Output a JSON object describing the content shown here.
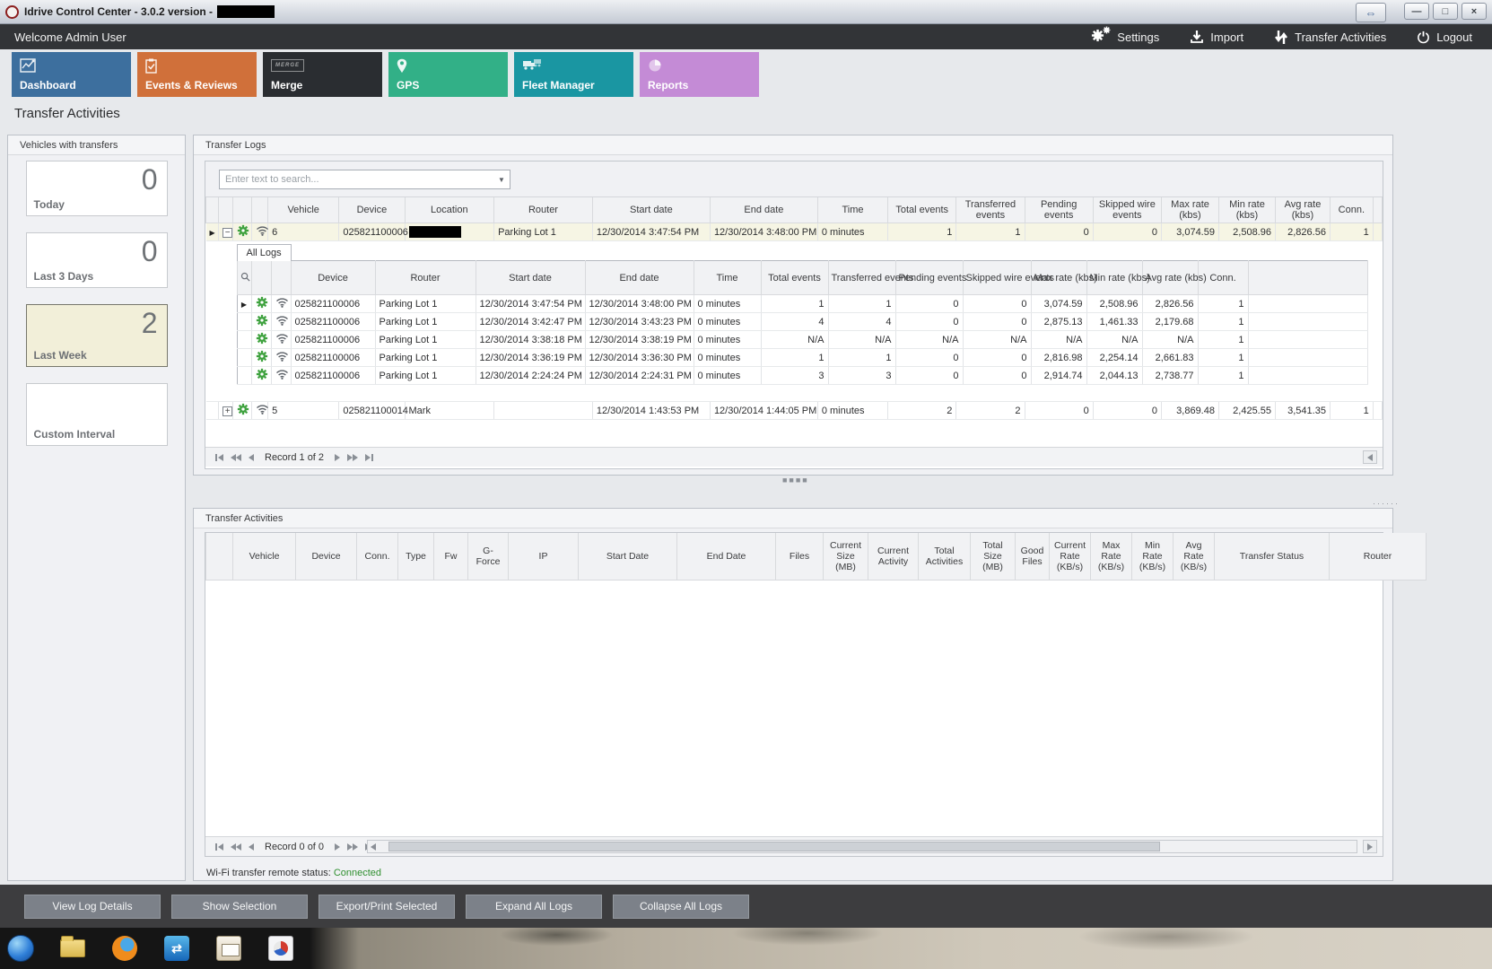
{
  "window": {
    "title": "Idrive Control Center - 3.0.2 version -",
    "title_redacted": true,
    "buttons": [
      "resize",
      "minimize",
      "maximize",
      "close"
    ]
  },
  "header": {
    "welcome": "Welcome Admin User",
    "actions": [
      {
        "label": "Settings",
        "icon": "gears-icon"
      },
      {
        "label": "Import",
        "icon": "import-icon"
      },
      {
        "label": "Transfer Activities",
        "icon": "transfer-arrows-icon"
      },
      {
        "label": "Logout",
        "icon": "power-icon"
      }
    ]
  },
  "nav": {
    "tiles": [
      {
        "label": "Dashboard",
        "color": "#3d6f9e",
        "icon": "line-chart-icon"
      },
      {
        "label": "Events & Reviews",
        "color": "#d0703a",
        "icon": "clipboard-check-icon"
      },
      {
        "label": "Merge",
        "color": "#2a2d31",
        "icon": "merge-badge-icon"
      },
      {
        "label": "GPS",
        "color": "#32b087",
        "icon": "map-pin-icon"
      },
      {
        "label": "Fleet Manager",
        "color": "#1a96a2",
        "icon": "trucks-icon"
      },
      {
        "label": "Reports",
        "color": "#c48bd6",
        "icon": "pie-chart-icon"
      }
    ]
  },
  "page_title": "Transfer Activities",
  "sidebar": {
    "title": "Vehicles with transfers",
    "cards": [
      {
        "label": "Today",
        "value": "0",
        "selected": false
      },
      {
        "label": "Last 3 Days",
        "value": "0",
        "selected": false
      },
      {
        "label": "Last Week",
        "value": "2",
        "selected": true
      },
      {
        "label": "Custom Interval",
        "value": "",
        "selected": false
      }
    ]
  },
  "transfer_logs": {
    "panel_title": "Transfer Logs",
    "search_placeholder": "Enter text to search...",
    "columns": [
      "",
      "",
      "",
      "",
      "Vehicle",
      "Device",
      "Location",
      "Router",
      "Start date",
      "End date",
      "Time",
      "Total events",
      "Transferred events",
      "Pending events",
      "Skipped wire events",
      "Max rate (kbs)",
      "Min rate (kbs)",
      "Avg rate (kbs)",
      "Conn.",
      ""
    ],
    "rows": [
      {
        "vehicle": "6",
        "device": "025821100006",
        "location": "",
        "location_redacted": true,
        "router": "Parking Lot 1",
        "start": "12/30/2014 3:47:54 PM",
        "end": "12/30/2014 3:48:00 PM",
        "time": "0 minutes",
        "total": "1",
        "transferred": "1",
        "pending": "0",
        "skipped": "0",
        "max": "3,074.59",
        "min": "2,508.96",
        "avg": "2,826.56",
        "conn": "1",
        "selected": true,
        "expanded": true
      },
      {
        "vehicle": "5",
        "device": "025821100014",
        "location": "Mark",
        "location_redacted": false,
        "router": "",
        "start": "12/30/2014 1:43:53 PM",
        "end": "12/30/2014 1:44:05 PM",
        "time": "0 minutes",
        "total": "2",
        "transferred": "2",
        "pending": "0",
        "skipped": "0",
        "max": "3,869.48",
        "min": "2,425.55",
        "avg": "3,541.35",
        "conn": "1",
        "selected": false,
        "expanded": false
      }
    ],
    "detail": {
      "tab_label": "All Logs",
      "columns": [
        "",
        "",
        "",
        "Device",
        "Router",
        "Start date",
        "End date",
        "Time",
        "Total events",
        "Transferred events",
        "Pending events",
        "Skipped wire events",
        "Max rate (kbs)",
        "Min rate (kbs)",
        "Avg rate (kbs)",
        "Conn.",
        ""
      ],
      "rows": [
        {
          "device": "025821100006",
          "router": "Parking Lot 1",
          "start": "12/30/2014 3:47:54 PM",
          "end": "12/30/2014 3:48:00 PM",
          "time": "0 minutes",
          "total": "1",
          "transferred": "1",
          "pending": "0",
          "skipped": "0",
          "max": "3,074.59",
          "min": "2,508.96",
          "avg": "2,826.56",
          "conn": "1"
        },
        {
          "device": "025821100006",
          "router": "Parking Lot 1",
          "start": "12/30/2014 3:42:47 PM",
          "end": "12/30/2014 3:43:23 PM",
          "time": "0 minutes",
          "total": "4",
          "transferred": "4",
          "pending": "0",
          "skipped": "0",
          "max": "2,875.13",
          "min": "1,461.33",
          "avg": "2,179.68",
          "conn": "1"
        },
        {
          "device": "025821100006",
          "router": "Parking Lot 1",
          "start": "12/30/2014 3:38:18 PM",
          "end": "12/30/2014 3:38:19 PM",
          "time": "0 minutes",
          "total": "N/A",
          "transferred": "N/A",
          "pending": "N/A",
          "skipped": "N/A",
          "max": "N/A",
          "min": "N/A",
          "avg": "N/A",
          "conn": "1"
        },
        {
          "device": "025821100006",
          "router": "Parking Lot 1",
          "start": "12/30/2014 3:36:19 PM",
          "end": "12/30/2014 3:36:30 PM",
          "time": "0 minutes",
          "total": "1",
          "transferred": "1",
          "pending": "0",
          "skipped": "0",
          "max": "2,816.98",
          "min": "2,254.14",
          "avg": "2,661.83",
          "conn": "1"
        },
        {
          "device": "025821100006",
          "router": "Parking Lot 1",
          "start": "12/30/2014 2:24:24 PM",
          "end": "12/30/2014 2:24:31 PM",
          "time": "0 minutes",
          "total": "3",
          "transferred": "3",
          "pending": "0",
          "skipped": "0",
          "max": "2,914.74",
          "min": "2,044.13",
          "avg": "2,738.77",
          "conn": "1"
        }
      ]
    },
    "pager_label": "Record 1 of 2"
  },
  "transfer_activities": {
    "panel_title": "Transfer Activities",
    "columns": [
      "",
      "Vehicle",
      "Device",
      "Conn.",
      "Type",
      "Fw",
      "G-Force",
      "IP",
      "Start Date",
      "End Date",
      "Files",
      "Current Size (MB)",
      "Current Activity",
      "Total Activities",
      "Total Size (MB)",
      "Good Files",
      "Current Rate (KB/s)",
      "Max Rate (KB/s)",
      "Min Rate (KB/s)",
      "Avg Rate (KB/s)",
      "Transfer Status",
      "Router"
    ],
    "pager_label": "Record 0 of 0",
    "status_label": "Wi-Fi transfer remote status:",
    "status_value": "Connected",
    "status_color": "#2f8f2f"
  },
  "footer": {
    "buttons": [
      "View Log Details",
      "Show Selection",
      "Export/Print Selected",
      "Expand All Logs",
      "Collapse All Logs"
    ]
  },
  "taskbar": {
    "icons": [
      "windows-start-icon",
      "file-explorer-icon",
      "firefox-icon",
      "blue-app-icon",
      "mail-app-icon",
      "media-app-icon"
    ]
  }
}
